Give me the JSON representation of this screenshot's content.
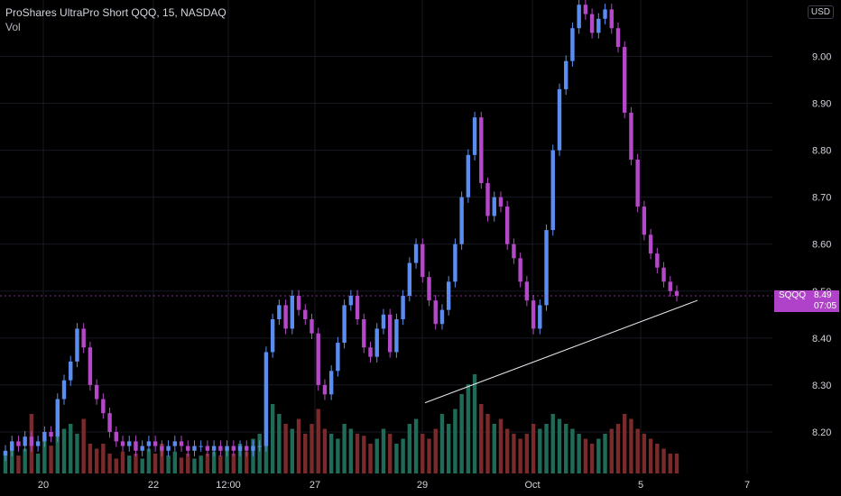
{
  "header": {
    "title": "ProShares UltraPro Short QQQ, 15, NASDAQ",
    "indicator": "Vol",
    "currency": "USD"
  },
  "price_label": {
    "symbol": "SQQQ",
    "price": "8.49",
    "countdown": "07:05",
    "color": "#b042c9"
  },
  "colors": {
    "background": "#000000",
    "up": "#5b8df0",
    "down": "#b548c8",
    "vol_up": "#1f6b57",
    "vol_down": "#7a2a2a",
    "grid": "#161a22",
    "trendline": "#e8e8ef",
    "text": "#d1d4dc"
  },
  "chart_data": {
    "type": "candlestick",
    "title": "ProShares UltraPro Short QQQ, 15, NASDAQ",
    "y_axis_side": "right",
    "y_ticks": [
      "9.00",
      "8.90",
      "8.80",
      "8.70",
      "8.60",
      "8.50",
      "8.40",
      "8.30",
      "8.20"
    ],
    "ylim": [
      8.15,
      9.12
    ],
    "x_ticks": [
      "20",
      "22",
      "12:00",
      "27",
      "29",
      "Oct",
      "5",
      "7"
    ],
    "grid": true,
    "current_price": 8.49,
    "closes": [
      8.16,
      8.18,
      8.17,
      8.19,
      8.17,
      8.18,
      8.2,
      8.19,
      8.27,
      8.31,
      8.35,
      8.42,
      8.38,
      8.3,
      8.27,
      8.24,
      8.2,
      8.18,
      8.17,
      8.18,
      8.16,
      8.17,
      8.18,
      8.17,
      8.16,
      8.17,
      8.18,
      8.17,
      8.16,
      8.17,
      8.17,
      8.16,
      8.17,
      8.16,
      8.17,
      8.16,
      8.17,
      8.16,
      8.17,
      8.17,
      8.37,
      8.44,
      8.47,
      8.42,
      8.49,
      8.46,
      8.44,
      8.41,
      8.3,
      8.28,
      8.33,
      8.39,
      8.47,
      8.49,
      8.44,
      8.38,
      8.36,
      8.42,
      8.45,
      8.37,
      8.44,
      8.49,
      8.56,
      8.6,
      8.53,
      8.48,
      8.43,
      8.46,
      8.52,
      8.6,
      8.7,
      8.79,
      8.87,
      8.73,
      8.66,
      8.7,
      8.68,
      8.6,
      8.57,
      8.52,
      8.48,
      8.42,
      8.47,
      8.63,
      8.8,
      8.93,
      8.99,
      9.06,
      9.11,
      9.09,
      9.05,
      9.08,
      9.1,
      9.06,
      9.02,
      8.88,
      8.78,
      8.68,
      8.62,
      8.58,
      8.55,
      8.52,
      8.5,
      8.49
    ],
    "volumes": [
      0.22,
      0.3,
      0.18,
      0.25,
      0.6,
      0.2,
      0.35,
      0.28,
      0.7,
      0.45,
      0.5,
      0.4,
      0.55,
      0.3,
      0.25,
      0.3,
      0.2,
      0.15,
      0.22,
      0.18,
      0.2,
      0.15,
      0.25,
      0.2,
      0.3,
      0.18,
      0.22,
      0.16,
      0.2,
      0.15,
      0.18,
      0.2,
      0.22,
      0.18,
      0.25,
      0.2,
      0.3,
      0.22,
      0.35,
      0.4,
      0.9,
      0.7,
      0.6,
      0.5,
      0.45,
      0.55,
      0.4,
      0.5,
      0.65,
      0.45,
      0.4,
      0.35,
      0.5,
      0.45,
      0.4,
      0.38,
      0.3,
      0.35,
      0.45,
      0.4,
      0.3,
      0.35,
      0.5,
      0.55,
      0.4,
      0.35,
      0.45,
      0.6,
      0.5,
      0.65,
      0.8,
      0.9,
      1.0,
      0.7,
      0.6,
      0.5,
      0.55,
      0.45,
      0.4,
      0.35,
      0.4,
      0.5,
      0.45,
      0.5,
      0.6,
      0.55,
      0.5,
      0.45,
      0.4,
      0.35,
      0.3,
      0.35,
      0.4,
      0.45,
      0.5,
      0.6,
      0.55,
      0.45,
      0.4,
      0.35,
      0.3,
      0.25,
      0.2,
      0.2
    ],
    "trendline": [
      [
        "29",
        8.26
      ],
      [
        "7",
        8.52
      ]
    ]
  }
}
